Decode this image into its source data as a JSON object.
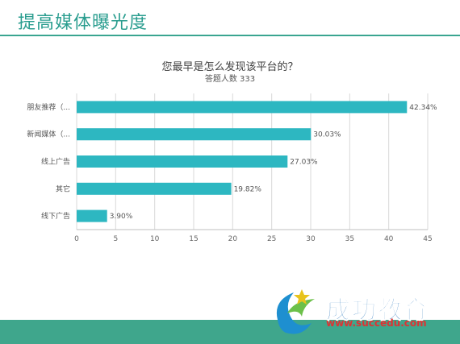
{
  "slide": {
    "title": "提高媒体曝光度"
  },
  "watermark": {
    "brand": "成功教育",
    "url": "www.succedu.com"
  },
  "colors": {
    "bar": "#2db7c1",
    "accent": "#3aa590",
    "grid": "#d9d9d9"
  },
  "chart_data": {
    "type": "bar",
    "orientation": "horizontal",
    "title": "您最早是怎么发现该平台的？",
    "subtitle": "答题人数 333",
    "categories": [
      "朋友推荐（...",
      "新闻媒体（...",
      "线上广告",
      "其它",
      "线下广告"
    ],
    "values": [
      42.34,
      30.03,
      27.03,
      19.82,
      3.9
    ],
    "data_labels": [
      "42.34%",
      "30.03%",
      "27.03%",
      "19.82%",
      "3.90%"
    ],
    "xticks": [
      "0",
      "5",
      "10",
      "15",
      "20",
      "25",
      "30",
      "35",
      "40",
      "45"
    ],
    "xlim": [
      0,
      45
    ],
    "grid": "vertical"
  }
}
